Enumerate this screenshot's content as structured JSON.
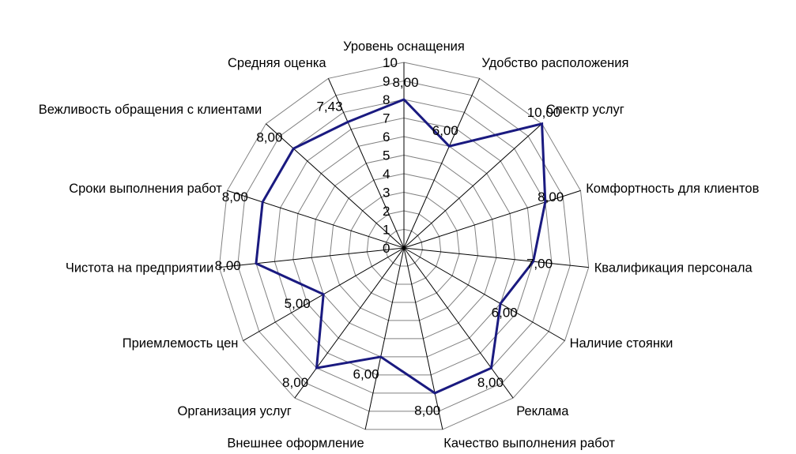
{
  "chart_data": {
    "type": "radar",
    "categories": [
      "Уровень оснащения",
      "Удобство расположения",
      "Спектр услуг",
      "Комфортность для клиентов",
      "Квалификация персонала",
      "Наличие стоянки",
      "Реклама",
      "Качество выполнения работ",
      "Внешнее оформление",
      "Организация услуг",
      "Приемлемость цен",
      "Чистота на предприятии",
      "Сроки выполнения работ",
      "Вежливость обращения с клиентами",
      "Средняя оценка"
    ],
    "series": [
      {
        "values": [
          8,
          6,
          10,
          8,
          7,
          6,
          8,
          8,
          6,
          8,
          5,
          8,
          8,
          8,
          7.43
        ],
        "value_labels": [
          "8,00",
          "6,00",
          "10,00",
          "8,00",
          "7,00",
          "6,00",
          "8,00",
          "8,00",
          "6,00",
          "8,00",
          "5,00",
          "8,00",
          "8,00",
          "8,00",
          "7,43"
        ],
        "color": "#1a1a80"
      }
    ],
    "rlim": [
      0,
      10
    ],
    "ticks": [
      "0",
      "1",
      "2",
      "3",
      "4",
      "5",
      "6",
      "7",
      "8",
      "9",
      "10"
    ],
    "grid": true,
    "title": "",
    "legend": "none"
  }
}
